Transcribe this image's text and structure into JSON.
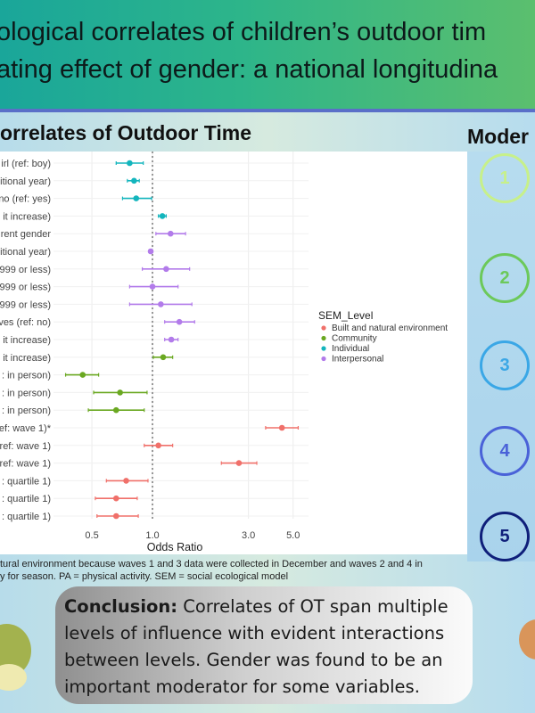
{
  "header": {
    "title_line1": "ological correlates of children’s outdoor tim",
    "title_line2": "ating effect of gender: a national longitudina"
  },
  "section_title": "orrelates of Outdoor Time",
  "moderation_title": "Moder",
  "moderators": [
    {
      "label": "1",
      "color": "#c7f08a"
    },
    {
      "label": "2",
      "color": "#6cc95a"
    },
    {
      "label": "3",
      "color": "#3aa7e6"
    },
    {
      "label": "4",
      "color": "#4a62d8"
    },
    {
      "label": "5",
      "color": "#0f1f7a"
    }
  ],
  "footnote": {
    "line1": "tural environment because waves 1 and 3 data were collected in December and waves 2 and 4 in",
    "line2": "y for season. PA = physical activity. SEM = social ecological model"
  },
  "conclusion": {
    "label": "Conclusion:",
    "text": " Correlates of OT span multiple levels of influence with evident interactions between levels. Gender was found to be an important moderator for some variables."
  },
  "chart_data": {
    "type": "forest",
    "xlabel": "Odds Ratio",
    "xscale": "log",
    "xlim": [
      0.32,
      6.2
    ],
    "xticks": [
      {
        "v": 0.5,
        "label": "0.5"
      },
      {
        "v": 1.0,
        "label": "1.0"
      },
      {
        "v": 3.0,
        "label": "3.0"
      },
      {
        "v": 5.0,
        "label": "5.0"
      }
    ],
    "reference_line": 1.0,
    "legend": {
      "title": "SEM_Level",
      "position": "right",
      "entries": [
        {
          "name": "Built and natural environment",
          "color": "#f0706a"
        },
        {
          "name": "Community",
          "color": "#6aa821"
        },
        {
          "name": "Individual",
          "color": "#13b5bd"
        },
        {
          "name": "Interpersonal",
          "color": "#b27bea"
        }
      ]
    },
    "rows": [
      {
        "label": "irl (ref: boy)",
        "level": "Individual",
        "or": 0.77,
        "lo": 0.66,
        "hi": 0.9
      },
      {
        "label": "itional year)",
        "level": "Individual",
        "or": 0.81,
        "lo": 0.75,
        "hi": 0.86
      },
      {
        "label": "no (ref: yes)",
        "level": "Individual",
        "or": 0.83,
        "lo": 0.71,
        "hi": 0.99
      },
      {
        "label": "it increase)",
        "level": "Individual",
        "or": 1.12,
        "lo": 1.07,
        "hi": 1.17
      },
      {
        "label": "rent gender",
        "level": "Interpersonal",
        "or": 1.23,
        "lo": 1.04,
        "hi": 1.46
      },
      {
        "label": "itional year)",
        "level": "Interpersonal",
        "or": 0.98,
        "lo": 0.96,
        "hi": 1.0
      },
      {
        "label": "999 or less)",
        "level": "Interpersonal",
        "or": 1.17,
        "lo": 0.89,
        "hi": 1.53
      },
      {
        "label": "999 or less)",
        "level": "Interpersonal",
        "or": 1.0,
        "lo": 0.77,
        "hi": 1.34
      },
      {
        "label": "999 or less)",
        "level": "Interpersonal",
        "or": 1.1,
        "lo": 0.77,
        "hi": 1.57
      },
      {
        "label": "ves (ref: no)",
        "level": "Interpersonal",
        "or": 1.36,
        "lo": 1.15,
        "hi": 1.62
      },
      {
        "label": "it increase)",
        "level": "Interpersonal",
        "or": 1.24,
        "lo": 1.15,
        "hi": 1.34
      },
      {
        "label": "it increase)",
        "level": "Community",
        "or": 1.13,
        "lo": 1.01,
        "hi": 1.26
      },
      {
        "label": ": in person)",
        "level": "Community",
        "or": 0.45,
        "lo": 0.37,
        "hi": 0.54
      },
      {
        "label": ": in person)",
        "level": "Community",
        "or": 0.69,
        "lo": 0.51,
        "hi": 0.94
      },
      {
        "label": ": in person)",
        "level": "Community",
        "or": 0.66,
        "lo": 0.48,
        "hi": 0.91
      },
      {
        "label": "ef: wave 1)*",
        "level": "Built and natural environment",
        "or": 4.4,
        "lo": 3.65,
        "hi": 5.3
      },
      {
        "label": "ref: wave 1)",
        "level": "Built and natural environment",
        "or": 1.07,
        "lo": 0.91,
        "hi": 1.26
      },
      {
        "label": "ref: wave 1)",
        "level": "Built and natural environment",
        "or": 2.69,
        "lo": 2.2,
        "hi": 3.3
      },
      {
        "label": ": quartile 1)",
        "level": "Built and natural environment",
        "or": 0.74,
        "lo": 0.59,
        "hi": 0.95
      },
      {
        "label": ": quartile 1)",
        "level": "Built and natural environment",
        "or": 0.66,
        "lo": 0.52,
        "hi": 0.84
      },
      {
        "label": ": quartile 1)",
        "level": "Built and natural environment",
        "or": 0.66,
        "lo": 0.53,
        "hi": 0.85
      }
    ]
  }
}
